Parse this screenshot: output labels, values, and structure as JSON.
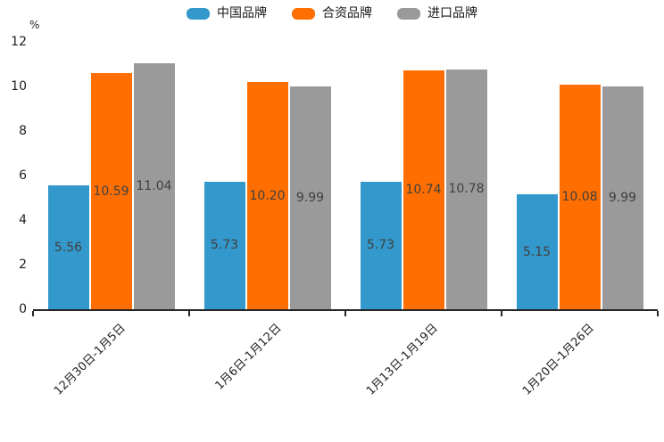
{
  "chart_data": {
    "type": "bar",
    "title": "",
    "categories": [
      "12月30日-1月5日",
      "1月6日-1月12日",
      "1月13日-1月19日",
      "1月20日-1月26日"
    ],
    "series": [
      {
        "name": "中国品牌",
        "color": "#3398CB",
        "values": [
          5.56,
          5.73,
          5.73,
          5.15
        ]
      },
      {
        "name": "合资品牌",
        "color": "#FF6E00",
        "values": [
          10.59,
          10.2,
          10.74,
          10.08
        ]
      },
      {
        "name": "进口品牌",
        "color": "#9A9A9A",
        "values": [
          11.04,
          9.99,
          10.78,
          9.99
        ]
      }
    ],
    "ylabel": "%",
    "xlabel": "",
    "ylim": [
      0,
      12
    ],
    "ytick_step": 2,
    "yticks": [
      0,
      2,
      4,
      6,
      8,
      10,
      12
    ],
    "grid": false,
    "legend_position": "top",
    "value_labels": true,
    "value_label_decimals": 2
  }
}
